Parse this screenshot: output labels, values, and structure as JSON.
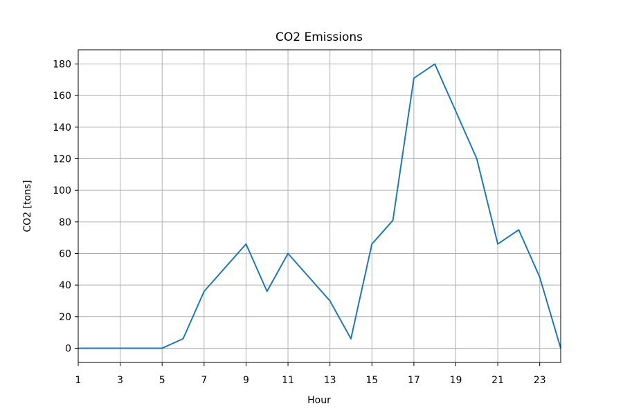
{
  "chart_data": {
    "type": "line",
    "title": "CO2 Emissions",
    "xlabel": "Hour",
    "ylabel": "CO2 [tons]",
    "xlim": [
      1,
      24
    ],
    "ylim": [
      -9,
      189
    ],
    "xticks": [
      1,
      3,
      5,
      7,
      9,
      11,
      13,
      15,
      17,
      19,
      21,
      23
    ],
    "yticks": [
      0,
      20,
      40,
      60,
      80,
      100,
      120,
      140,
      160,
      180
    ],
    "grid": true,
    "series": [
      {
        "color": "#1f77b4",
        "x": [
          1,
          2,
          3,
          4,
          5,
          6,
          7,
          8,
          9,
          10,
          11,
          12,
          13,
          14,
          15,
          16,
          17,
          18,
          19,
          20,
          21,
          22,
          23,
          24
        ],
        "y": [
          0,
          0,
          0,
          0,
          0,
          6,
          36,
          51,
          66,
          36,
          60,
          45,
          30,
          6,
          66,
          81,
          171,
          180,
          150,
          120,
          66,
          75,
          45,
          0
        ]
      }
    ]
  }
}
